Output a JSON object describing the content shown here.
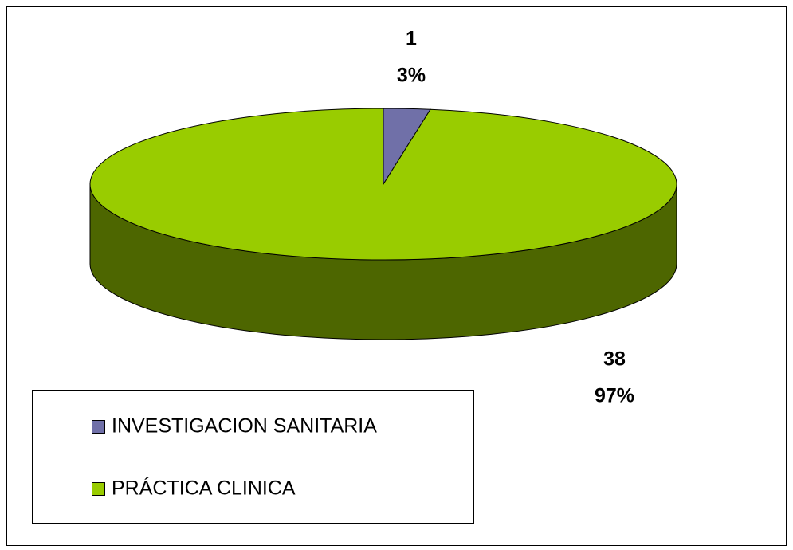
{
  "chart_data": {
    "type": "pie3d",
    "categories": [
      "INVESTIGACION SANITARIA",
      "PRÁCTICA CLINICA"
    ],
    "values": [
      1,
      38
    ],
    "percent_labels": [
      "3%",
      "97%"
    ],
    "colors": [
      "#7070a8",
      "#99cc00"
    ],
    "legend": "bottom-left"
  }
}
